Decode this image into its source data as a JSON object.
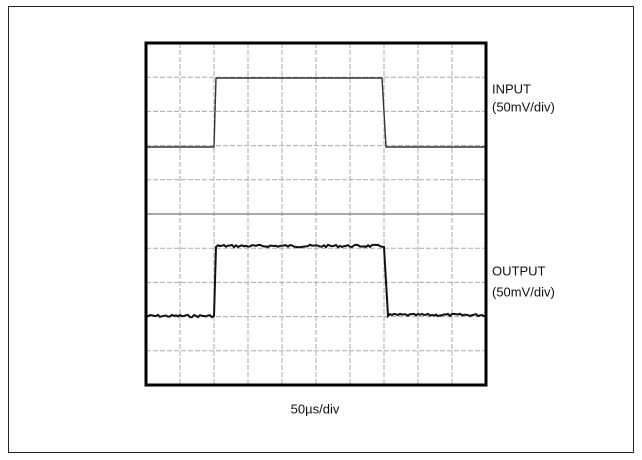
{
  "labels": {
    "input": "INPUT",
    "input_scale": "(50mV/div)",
    "output": "OUTPUT",
    "output_scale": "(50mV/div)",
    "time_scale": "50µs/div"
  }
}
